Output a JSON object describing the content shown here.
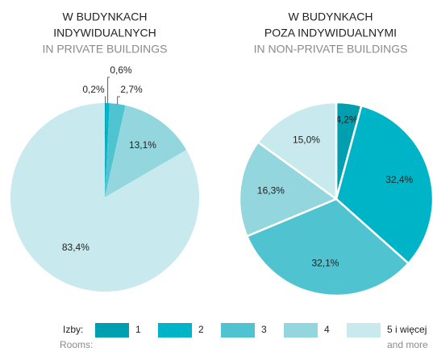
{
  "chart_data": [
    {
      "type": "pie",
      "title": [
        "W BUDYNKACH",
        "INDYWIDUALNYCH"
      ],
      "subtitle": "IN PRIVATE BUILDINGS",
      "values": [
        0.2,
        0.6,
        2.7,
        13.1,
        83.4
      ],
      "value_labels": [
        "0,2%",
        "0,6%",
        "2,7%",
        "13,1%",
        "83,4%"
      ],
      "colors": [
        "#009fb0",
        "#00b4c8",
        "#4fc3d0",
        "#93d6dd",
        "#c8e9ee"
      ]
    },
    {
      "type": "pie",
      "title": [
        "W BUDYNKACH",
        "POZA INDYWIDUALNYMI"
      ],
      "subtitle": "IN NON-PRIVATE BUILDINGS",
      "values": [
        4.2,
        32.4,
        32.1,
        16.3,
        15.0
      ],
      "value_labels": [
        "4,2%",
        "32,4%",
        "32,1%",
        "16,3%",
        "15,0%"
      ],
      "colors": [
        "#009fb0",
        "#00b4c8",
        "#4fc3d0",
        "#93d6dd",
        "#c8e9ee"
      ]
    }
  ],
  "legend": {
    "title": "Izby:",
    "subtitle": "Rooms:",
    "labels": [
      "1",
      "2",
      "3",
      "4",
      "5 i więcej"
    ],
    "note": "and more",
    "colors": [
      "#009fb0",
      "#00b4c8",
      "#4fc3d0",
      "#93d6dd",
      "#c8e9ee"
    ]
  }
}
